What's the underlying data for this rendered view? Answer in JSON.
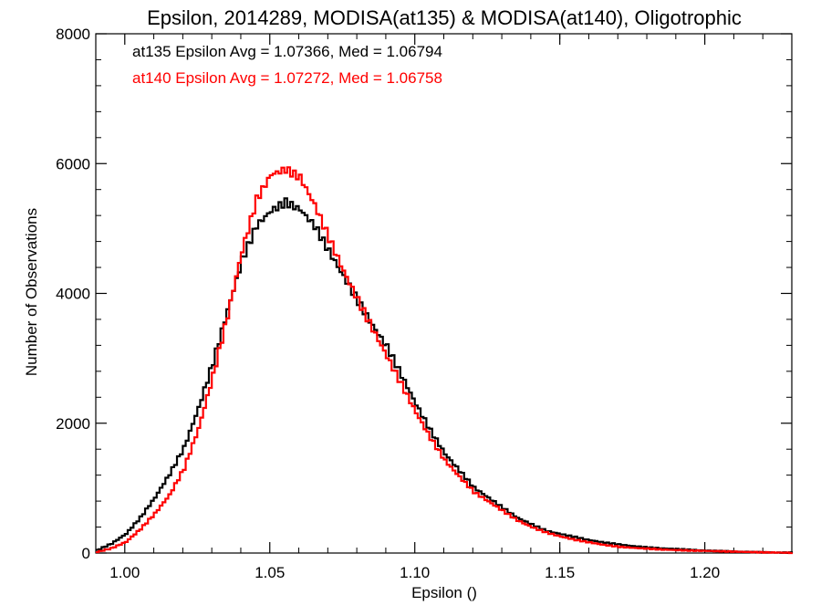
{
  "chart_data": {
    "type": "line",
    "title": "Epsilon, 2014289, MODISA(at135) & MODISA(at140), Oligotrophic",
    "xlabel": "Epsilon ()",
    "ylabel": "Number of Observations",
    "xlim": [
      0.99,
      1.23
    ],
    "ylim": [
      0,
      8000
    ],
    "x_ticks": [
      1.0,
      1.05,
      1.1,
      1.15,
      1.2
    ],
    "x_tick_labels": [
      "1.00",
      "1.05",
      "1.10",
      "1.15",
      "1.20"
    ],
    "y_ticks": [
      0,
      2000,
      4000,
      6000,
      8000
    ],
    "y_tick_labels": [
      "0",
      "2000",
      "4000",
      "6000",
      "8000"
    ],
    "grid": false,
    "legend_position": "top-left",
    "series": [
      {
        "name": "at135 Epsilon Avg = 1.07366, Med = 1.06794",
        "color": "#000000",
        "x": [
          0.99,
          0.995,
          1.0,
          1.005,
          1.01,
          1.015,
          1.02,
          1.025,
          1.03,
          1.035,
          1.04,
          1.045,
          1.05,
          1.055,
          1.06,
          1.065,
          1.07,
          1.075,
          1.08,
          1.085,
          1.09,
          1.095,
          1.1,
          1.105,
          1.11,
          1.115,
          1.12,
          1.125,
          1.13,
          1.135,
          1.14,
          1.145,
          1.15,
          1.155,
          1.16,
          1.165,
          1.17,
          1.175,
          1.18,
          1.185,
          1.19,
          1.195,
          1.2,
          1.205,
          1.21,
          1.215,
          1.22,
          1.225,
          1.23
        ],
        "y": [
          50,
          150,
          300,
          550,
          850,
          1200,
          1600,
          2200,
          2900,
          3700,
          4500,
          5050,
          5300,
          5450,
          5350,
          5100,
          4700,
          4300,
          3900,
          3500,
          3150,
          2700,
          2250,
          1850,
          1500,
          1250,
          1000,
          850,
          700,
          550,
          450,
          350,
          300,
          250,
          200,
          160,
          130,
          100,
          80,
          65,
          55,
          45,
          35,
          30,
          25,
          20,
          15,
          12,
          10
        ]
      },
      {
        "name": "at140 Epsilon Avg = 1.07272, Med = 1.06758",
        "color": "#ff0000",
        "x": [
          0.99,
          0.995,
          1.0,
          1.005,
          1.01,
          1.015,
          1.02,
          1.025,
          1.03,
          1.035,
          1.04,
          1.045,
          1.05,
          1.055,
          1.06,
          1.065,
          1.07,
          1.075,
          1.08,
          1.085,
          1.09,
          1.095,
          1.1,
          1.105,
          1.11,
          1.115,
          1.12,
          1.125,
          1.13,
          1.135,
          1.14,
          1.145,
          1.15,
          1.155,
          1.16,
          1.165,
          1.17,
          1.175,
          1.18,
          1.185,
          1.19,
          1.195,
          1.2,
          1.205,
          1.21,
          1.215,
          1.22,
          1.225,
          1.23
        ],
        "y": [
          20,
          80,
          180,
          380,
          620,
          900,
          1300,
          1900,
          2700,
          3600,
          4600,
          5400,
          5800,
          5900,
          5800,
          5400,
          4900,
          4400,
          3950,
          3500,
          3050,
          2600,
          2150,
          1750,
          1400,
          1150,
          920,
          780,
          640,
          500,
          400,
          320,
          260,
          210,
          170,
          130,
          100,
          80,
          65,
          50,
          40,
          32,
          28,
          22,
          18,
          14,
          11,
          9,
          8
        ]
      }
    ]
  }
}
